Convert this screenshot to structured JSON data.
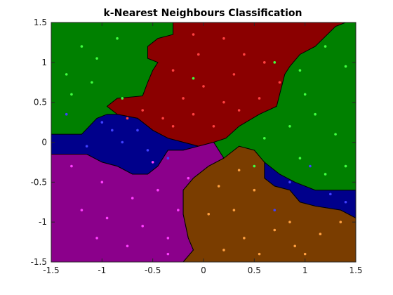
{
  "chart_data": {
    "type": "scatter",
    "title": "k-Nearest Neighbours Classification",
    "xlabel": "",
    "ylabel": "",
    "xlim": [
      -1.5,
      1.5
    ],
    "ylim": [
      -1.5,
      1.5
    ],
    "xticks": [
      "-1.5",
      "-1",
      "-0.5",
      "0",
      "0.5",
      "1",
      "1.5"
    ],
    "yticks": [
      "-1.5",
      "-1",
      "-0.5",
      "0",
      "0.5",
      "1",
      "1.5"
    ],
    "grid": false,
    "legend": "none",
    "regions": [
      {
        "class": "red",
        "color": "#8b0000",
        "boundary": [
          [
            -0.3,
            1.5
          ],
          [
            1.4,
            1.5
          ],
          [
            1.3,
            1.45
          ],
          [
            1.1,
            1.2
          ],
          [
            0.95,
            1.1
          ],
          [
            0.85,
            0.95
          ],
          [
            0.8,
            0.85
          ],
          [
            0.75,
            0.6
          ],
          [
            0.72,
            0.45
          ],
          [
            0.55,
            0.35
          ],
          [
            0.35,
            0.2
          ],
          [
            0.22,
            0.05
          ],
          [
            0.1,
            0.0
          ],
          [
            -0.05,
            -0.05
          ],
          [
            -0.2,
            0.0
          ],
          [
            -0.35,
            0.05
          ],
          [
            -0.5,
            0.15
          ],
          [
            -0.65,
            0.3
          ],
          [
            -0.85,
            0.35
          ],
          [
            -0.95,
            0.45
          ],
          [
            -0.85,
            0.55
          ],
          [
            -0.6,
            0.58
          ],
          [
            -0.55,
            0.75
          ],
          [
            -0.5,
            0.9
          ],
          [
            -0.45,
            1.0
          ],
          [
            -0.55,
            1.05
          ],
          [
            -0.55,
            1.2
          ],
          [
            -0.45,
            1.3
          ],
          [
            -0.3,
            1.35
          ]
        ]
      },
      {
        "class": "blue",
        "color": "#00008b",
        "boundary": [
          [
            -1.5,
            0.1
          ],
          [
            -1.2,
            0.1
          ],
          [
            -1.05,
            0.3
          ],
          [
            -0.95,
            0.35
          ],
          [
            -0.85,
            0.35
          ],
          [
            -0.65,
            0.3
          ],
          [
            -0.5,
            0.15
          ],
          [
            -0.35,
            0.05
          ],
          [
            -0.2,
            0.0
          ],
          [
            -0.05,
            -0.05
          ],
          [
            -0.2,
            -0.1
          ],
          [
            -0.35,
            -0.1
          ],
          [
            -0.45,
            -0.3
          ],
          [
            -0.55,
            -0.4
          ],
          [
            -0.7,
            -0.4
          ],
          [
            -0.85,
            -0.3
          ],
          [
            -1.0,
            -0.25
          ],
          [
            -1.15,
            -0.15
          ],
          [
            -1.3,
            -0.15
          ],
          [
            -1.5,
            -0.15
          ]
        ]
      },
      {
        "class": "blue",
        "color": "#00008b",
        "boundary": [
          [
            0.6,
            -0.25
          ],
          [
            0.75,
            -0.4
          ],
          [
            0.9,
            -0.5
          ],
          [
            1.1,
            -0.6
          ],
          [
            1.3,
            -0.6
          ],
          [
            1.5,
            -0.6
          ],
          [
            1.5,
            -0.95
          ],
          [
            1.35,
            -0.85
          ],
          [
            1.1,
            -0.8
          ],
          [
            0.95,
            -0.75
          ],
          [
            0.85,
            -0.6
          ],
          [
            0.7,
            -0.55
          ],
          [
            0.6,
            -0.45
          ]
        ]
      },
      {
        "class": "magenta",
        "color": "#8b008b",
        "boundary": [
          [
            -1.5,
            -0.15
          ],
          [
            -1.3,
            -0.15
          ],
          [
            -1.15,
            -0.15
          ],
          [
            -1.0,
            -0.25
          ],
          [
            -0.85,
            -0.3
          ],
          [
            -0.7,
            -0.4
          ],
          [
            -0.55,
            -0.4
          ],
          [
            -0.45,
            -0.3
          ],
          [
            -0.35,
            -0.1
          ],
          [
            -0.2,
            -0.1
          ],
          [
            -0.05,
            -0.05
          ],
          [
            0.1,
            0.0
          ],
          [
            0.2,
            -0.2
          ],
          [
            0.05,
            -0.3
          ],
          [
            -0.1,
            -0.45
          ],
          [
            -0.2,
            -0.6
          ],
          [
            -0.2,
            -0.9
          ],
          [
            -0.15,
            -1.2
          ],
          [
            -0.1,
            -1.35
          ],
          [
            -0.2,
            -1.5
          ],
          [
            -1.5,
            -1.5
          ]
        ]
      },
      {
        "class": "brown",
        "color": "#7a3d00",
        "boundary": [
          [
            -0.2,
            -1.5
          ],
          [
            -0.1,
            -1.35
          ],
          [
            -0.15,
            -1.2
          ],
          [
            -0.2,
            -0.9
          ],
          [
            -0.2,
            -0.6
          ],
          [
            -0.1,
            -0.45
          ],
          [
            0.05,
            -0.3
          ],
          [
            0.2,
            -0.2
          ],
          [
            0.35,
            -0.05
          ],
          [
            0.5,
            -0.1
          ],
          [
            0.6,
            -0.25
          ],
          [
            0.6,
            -0.45
          ],
          [
            0.7,
            -0.55
          ],
          [
            0.85,
            -0.6
          ],
          [
            0.95,
            -0.75
          ],
          [
            1.1,
            -0.8
          ],
          [
            1.35,
            -0.85
          ],
          [
            1.5,
            -0.95
          ],
          [
            1.5,
            -1.5
          ]
        ]
      }
    ],
    "series": [
      {
        "class": "red",
        "color": "#ff4040",
        "points": [
          [
            -0.1,
            1.35
          ],
          [
            0.2,
            1.3
          ],
          [
            0.4,
            1.1
          ],
          [
            0.6,
            1.0
          ],
          [
            -0.3,
            0.9
          ],
          [
            0.0,
            0.7
          ],
          [
            0.2,
            0.5
          ],
          [
            0.35,
            0.4
          ],
          [
            -0.6,
            0.4
          ],
          [
            -0.4,
            0.3
          ],
          [
            -0.1,
            0.35
          ],
          [
            0.1,
            0.2
          ],
          [
            0.55,
            0.55
          ],
          [
            0.75,
            0.75
          ],
          [
            -0.2,
            0.55
          ],
          [
            -0.05,
            1.1
          ],
          [
            0.3,
            0.85
          ],
          [
            -0.75,
            0.3
          ],
          [
            -0.3,
            0.2
          ]
        ]
      },
      {
        "class": "green",
        "color": "#40ff40",
        "points": [
          [
            -1.2,
            1.2
          ],
          [
            -1.05,
            1.05
          ],
          [
            -0.85,
            1.3
          ],
          [
            -1.35,
            0.85
          ],
          [
            -1.1,
            0.75
          ],
          [
            -0.8,
            0.55
          ],
          [
            -1.3,
            0.6
          ],
          [
            0.7,
            1.0
          ],
          [
            0.95,
            0.9
          ],
          [
            1.2,
            1.2
          ],
          [
            1.4,
            0.95
          ],
          [
            1.0,
            0.6
          ],
          [
            0.85,
            0.2
          ],
          [
            1.1,
            0.35
          ],
          [
            1.3,
            0.1
          ],
          [
            0.95,
            -0.2
          ],
          [
            1.2,
            -0.4
          ],
          [
            1.4,
            -0.3
          ],
          [
            0.5,
            -0.3
          ],
          [
            0.6,
            0.05
          ],
          [
            -0.1,
            0.8
          ]
        ]
      },
      {
        "class": "blue",
        "color": "#4040ff",
        "points": [
          [
            -1.35,
            0.35
          ],
          [
            -1.0,
            0.25
          ],
          [
            -0.8,
            0.0
          ],
          [
            -1.15,
            -0.05
          ],
          [
            -0.55,
            -0.1
          ],
          [
            -0.65,
            0.15
          ],
          [
            -0.35,
            -0.2
          ],
          [
            1.05,
            -0.3
          ],
          [
            1.25,
            -0.65
          ],
          [
            0.7,
            -0.85
          ],
          [
            0.85,
            -0.5
          ],
          [
            1.4,
            -0.75
          ],
          [
            -0.9,
            0.15
          ]
        ]
      },
      {
        "class": "magenta",
        "color": "#ff40ff",
        "points": [
          [
            -1.3,
            -0.3
          ],
          [
            -1.0,
            -0.5
          ],
          [
            -0.7,
            -0.7
          ],
          [
            -1.2,
            -0.85
          ],
          [
            -0.95,
            -0.95
          ],
          [
            -0.45,
            -0.6
          ],
          [
            -0.6,
            -1.05
          ],
          [
            -1.05,
            -1.2
          ],
          [
            -0.75,
            -1.3
          ],
          [
            -0.35,
            -1.2
          ],
          [
            -0.25,
            -0.85
          ],
          [
            -0.15,
            -0.45
          ],
          [
            -0.5,
            -0.25
          ],
          [
            -0.35,
            -1.4
          ]
        ]
      },
      {
        "class": "brown",
        "color": "#ffa040",
        "points": [
          [
            0.15,
            -0.55
          ],
          [
            0.3,
            -0.85
          ],
          [
            0.5,
            -0.6
          ],
          [
            0.7,
            -1.1
          ],
          [
            0.4,
            -1.2
          ],
          [
            0.2,
            -1.35
          ],
          [
            0.9,
            -1.3
          ],
          [
            1.15,
            -1.15
          ],
          [
            1.35,
            -1.0
          ],
          [
            0.05,
            -0.9
          ],
          [
            0.55,
            -1.4
          ],
          [
            0.35,
            -0.35
          ],
          [
            0.85,
            -1.0
          ],
          [
            1.0,
            -1.4
          ]
        ]
      }
    ]
  }
}
